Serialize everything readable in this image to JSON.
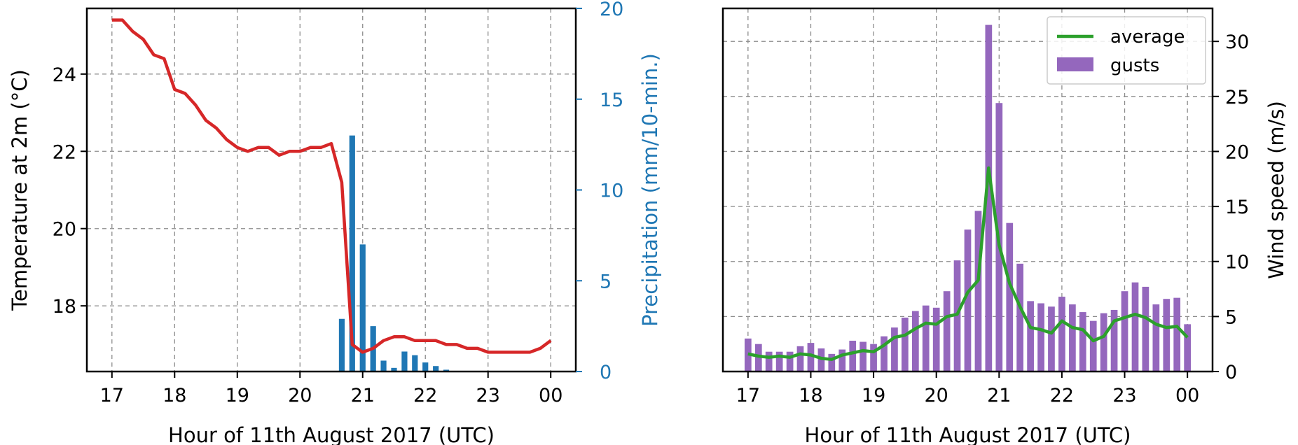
{
  "chart_data": [
    {
      "panel": "left",
      "type": "line+bar",
      "xlabel": "Hour of 11th August 2017 (UTC)",
      "xticks": [
        "17",
        "18",
        "19",
        "20",
        "21",
        "22",
        "23",
        "00"
      ],
      "ylabel_left": "Temperature at 2m (°C)",
      "ylabel_right": "Precipitation (mm/10-min.)",
      "ylim_left": [
        16.3,
        25.7
      ],
      "yticks_left": [
        "18",
        "20",
        "22",
        "24"
      ],
      "ylim_right": [
        0,
        20
      ],
      "yticks_right": [
        "0",
        "5",
        "10",
        "15",
        "20"
      ],
      "grid": true,
      "colors": {
        "temperature": "#d62728",
        "precipitation": "#1f77b4"
      },
      "temperature": {
        "x": [
          17.0,
          17.167,
          17.333,
          17.5,
          17.667,
          17.833,
          18.0,
          18.167,
          18.333,
          18.5,
          18.667,
          18.833,
          19.0,
          19.167,
          19.333,
          19.5,
          19.667,
          19.833,
          20.0,
          20.167,
          20.333,
          20.5,
          20.667,
          20.833,
          21.0,
          21.167,
          21.333,
          21.5,
          21.667,
          21.833,
          22.0,
          22.167,
          22.333,
          22.5,
          22.667,
          22.833,
          23.0,
          23.167,
          23.333,
          23.5,
          23.667,
          23.833,
          24.0
        ],
        "y": [
          25.4,
          25.4,
          25.1,
          24.9,
          24.5,
          24.4,
          23.6,
          23.5,
          23.2,
          22.8,
          22.6,
          22.3,
          22.1,
          22.0,
          22.1,
          22.1,
          21.9,
          22.0,
          22.0,
          22.1,
          22.1,
          22.2,
          21.2,
          17.0,
          16.8,
          16.9,
          17.1,
          17.2,
          17.2,
          17.1,
          17.1,
          17.1,
          17.0,
          17.0,
          16.9,
          16.9,
          16.8,
          16.8,
          16.8,
          16.8,
          16.8,
          16.9,
          17.1
        ]
      },
      "precipitation": {
        "x": [
          20.667,
          20.833,
          21.0,
          21.167,
          21.333,
          21.5,
          21.667,
          21.833,
          22.0,
          22.167,
          22.333
        ],
        "y": [
          2.9,
          13.0,
          7.0,
          2.5,
          0.6,
          0.2,
          1.1,
          0.9,
          0.5,
          0.3,
          0.1
        ]
      }
    },
    {
      "panel": "right",
      "type": "bar+line",
      "xlabel": "Hour of 11th August 2017 (UTC)",
      "xticks": [
        "17",
        "18",
        "19",
        "20",
        "21",
        "22",
        "23",
        "00"
      ],
      "ylabel": "Wind speed (m/s)",
      "ylim": [
        0,
        33
      ],
      "yticks": [
        "0",
        "5",
        "10",
        "15",
        "20",
        "25",
        "30"
      ],
      "grid": true,
      "legend_position": "top-right",
      "series": [
        {
          "name": "average",
          "kind": "line",
          "color": "#2ca02c",
          "x": [
            17.0,
            17.167,
            17.333,
            17.5,
            17.667,
            17.833,
            18.0,
            18.167,
            18.333,
            18.5,
            18.667,
            18.833,
            19.0,
            19.167,
            19.333,
            19.5,
            19.667,
            19.833,
            20.0,
            20.167,
            20.333,
            20.5,
            20.667,
            20.833,
            21.0,
            21.167,
            21.333,
            21.5,
            21.667,
            21.833,
            22.0,
            22.167,
            22.333,
            22.5,
            22.667,
            22.833,
            23.0,
            23.167,
            23.333,
            23.5,
            23.667,
            23.833,
            24.0
          ],
          "y": [
            1.6,
            1.4,
            1.3,
            1.4,
            1.3,
            1.6,
            1.5,
            1.2,
            1.1,
            1.5,
            1.7,
            1.9,
            1.8,
            2.4,
            3.1,
            3.3,
            3.9,
            4.4,
            4.3,
            5.0,
            5.2,
            7.2,
            8.3,
            18.5,
            11.5,
            8.0,
            5.9,
            4.0,
            3.8,
            3.5,
            4.6,
            4.0,
            3.8,
            2.8,
            3.2,
            4.6,
            4.9,
            5.2,
            4.9,
            4.3,
            4.0,
            4.1,
            3.1
          ]
        },
        {
          "name": "gusts",
          "kind": "bar",
          "color": "#9467bd",
          "x": [
            17.0,
            17.167,
            17.333,
            17.5,
            17.667,
            17.833,
            18.0,
            18.167,
            18.333,
            18.5,
            18.667,
            18.833,
            19.0,
            19.167,
            19.333,
            19.5,
            19.667,
            19.833,
            20.0,
            20.167,
            20.333,
            20.5,
            20.667,
            20.833,
            21.0,
            21.167,
            21.333,
            21.5,
            21.667,
            21.833,
            22.0,
            22.167,
            22.333,
            22.5,
            22.667,
            22.833,
            23.0,
            23.167,
            23.333,
            23.5,
            23.667,
            23.833,
            24.0
          ],
          "y": [
            3.0,
            2.5,
            1.8,
            1.8,
            1.8,
            2.3,
            2.6,
            2.1,
            1.6,
            2.0,
            2.8,
            2.7,
            2.5,
            3.2,
            4.0,
            4.9,
            5.5,
            6.0,
            5.8,
            7.3,
            10.1,
            12.9,
            14.6,
            31.5,
            24.4,
            13.5,
            9.8,
            6.4,
            6.2,
            5.9,
            6.8,
            6.1,
            5.4,
            4.6,
            5.3,
            5.6,
            7.3,
            8.1,
            7.7,
            6.1,
            6.6,
            6.7,
            4.3
          ]
        }
      ]
    }
  ]
}
